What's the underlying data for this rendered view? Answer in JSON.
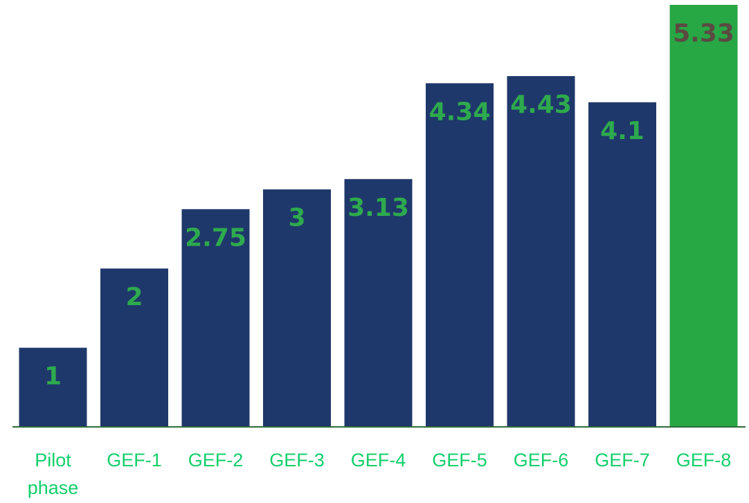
{
  "chart_data": {
    "type": "bar",
    "categories": [
      "Pilot\nphase",
      "GEF-1",
      "GEF-2",
      "GEF-3",
      "GEF-4",
      "GEF-5",
      "GEF-6",
      "GEF-7",
      "GEF-8"
    ],
    "values": [
      1,
      2,
      2.75,
      3,
      3.13,
      4.34,
      4.43,
      4.1,
      5.33
    ],
    "value_labels": [
      "1",
      "2",
      "2.75",
      "3",
      "3.13",
      "4.34",
      "4.43",
      "4.1",
      "5.33"
    ],
    "title": "",
    "xlabel": "",
    "ylabel": "",
    "ylim": [
      0,
      5.33
    ],
    "grid": false,
    "highlight_index": 8,
    "colors": {
      "bar": "#1f386b",
      "bar_highlight": "#28a745",
      "value_label": "#2eaa4e",
      "value_label_highlight": "#5b4a42",
      "tick_label": "#12cf6b",
      "axis_line": "#2e6b3a"
    }
  }
}
